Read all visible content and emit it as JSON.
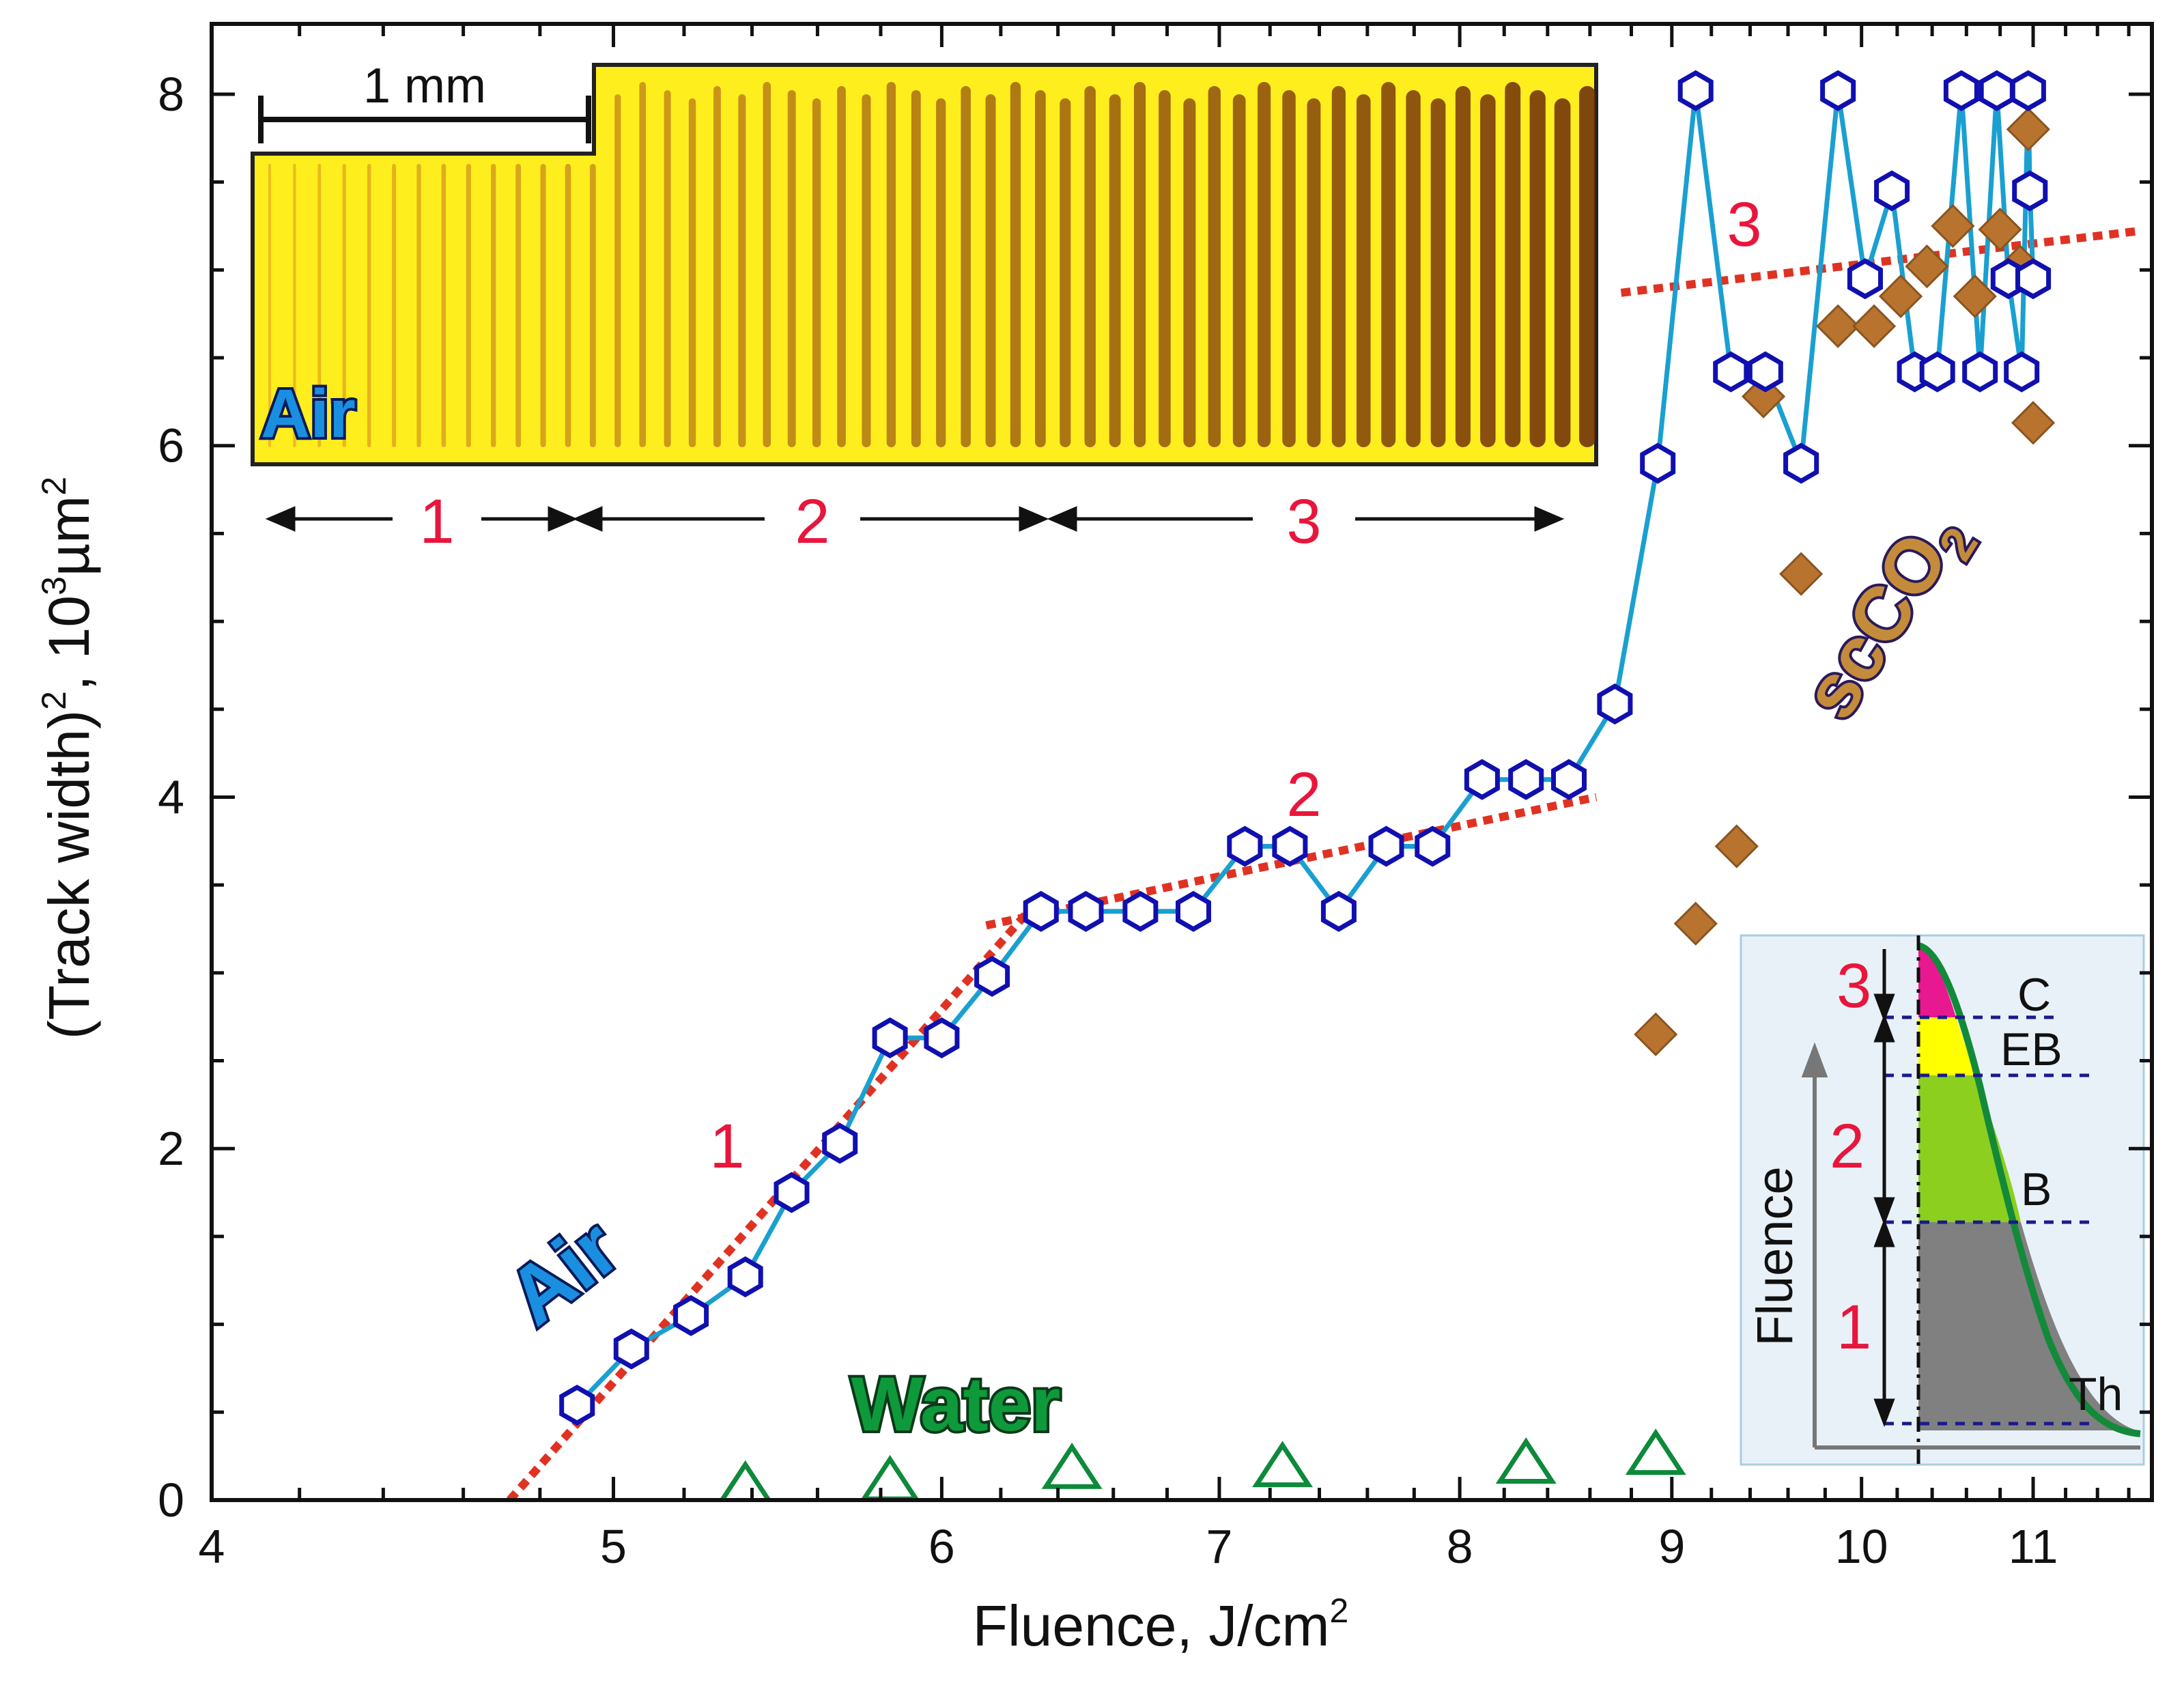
{
  "chart_data": {
    "type": "scatter",
    "xscale": "log",
    "xlabel": "Fluence, J/cm",
    "xlabel_sup": "2",
    "ylabel_parts": [
      "(Track width)",
      "2",
      ", 10",
      "3",
      "µm",
      "2"
    ],
    "xlim": [
      4,
      11.75
    ],
    "ylim": [
      0,
      8.4
    ],
    "xticks": [
      4,
      5,
      6,
      7,
      8,
      9,
      10,
      11
    ],
    "xtick_labels": [
      "4",
      "5",
      "6",
      "7",
      "8",
      "9",
      "10",
      "11"
    ],
    "yticks": [
      0,
      2,
      4,
      6,
      8
    ],
    "ytick_labels": [
      "0",
      "2",
      "4",
      "6",
      "8"
    ],
    "series": [
      {
        "name": "Air",
        "marker": "open-hexagon",
        "color": "#1010b0",
        "line_color": "#1aa0d0",
        "points": [
          [
            4.9,
            0.54
          ],
          [
            5.05,
            0.86
          ],
          [
            5.22,
            1.05
          ],
          [
            5.38,
            1.27
          ],
          [
            5.52,
            1.75
          ],
          [
            5.67,
            2.03
          ],
          [
            5.83,
            2.63
          ],
          [
            6.0,
            2.63
          ],
          [
            6.17,
            2.98
          ],
          [
            6.34,
            3.35
          ],
          [
            6.5,
            3.35
          ],
          [
            6.7,
            3.35
          ],
          [
            6.9,
            3.35
          ],
          [
            7.1,
            3.72
          ],
          [
            7.28,
            3.72
          ],
          [
            7.48,
            3.35
          ],
          [
            7.68,
            3.72
          ],
          [
            7.88,
            3.72
          ],
          [
            8.1,
            4.1
          ],
          [
            8.3,
            4.1
          ],
          [
            8.5,
            4.1
          ],
          [
            8.72,
            4.53
          ],
          [
            8.93,
            5.9
          ],
          [
            9.12,
            8.02
          ],
          [
            9.3,
            6.42
          ],
          [
            9.48,
            6.42
          ],
          [
            9.67,
            5.9
          ],
          [
            9.87,
            8.02
          ],
          [
            10.02,
            6.95
          ],
          [
            10.17,
            7.45
          ],
          [
            10.3,
            6.42
          ],
          [
            10.43,
            6.42
          ],
          [
            10.57,
            8.02
          ],
          [
            10.68,
            6.42
          ],
          [
            10.78,
            8.02
          ],
          [
            10.85,
            6.95
          ],
          [
            10.93,
            6.42
          ],
          [
            10.97,
            8.02
          ],
          [
            10.98,
            7.45
          ],
          [
            11.0,
            6.95
          ]
        ]
      },
      {
        "name": "Water",
        "marker": "open-triangle",
        "color": "#0d8a3a",
        "points": [
          [
            5.38,
            0.07
          ],
          [
            5.83,
            0.1
          ],
          [
            6.45,
            0.17
          ],
          [
            7.25,
            0.18
          ],
          [
            8.3,
            0.2
          ],
          [
            8.92,
            0.25
          ]
        ]
      },
      {
        "name": "scCO2",
        "marker": "diamond",
        "color": "#b8742e",
        "points": [
          [
            8.92,
            2.65
          ],
          [
            9.12,
            3.28
          ],
          [
            9.33,
            3.72
          ],
          [
            9.47,
            6.28
          ],
          [
            9.67,
            5.27
          ],
          [
            9.87,
            6.68
          ],
          [
            10.07,
            6.68
          ],
          [
            10.22,
            6.85
          ],
          [
            10.37,
            7.02
          ],
          [
            10.52,
            7.25
          ],
          [
            10.65,
            6.85
          ],
          [
            10.8,
            7.23
          ],
          [
            10.92,
            7.02
          ],
          [
            10.97,
            7.8
          ],
          [
            11.0,
            6.13
          ]
        ]
      }
    ],
    "trend_lines": [
      {
        "label": "1",
        "from": [
          4.72,
          0.0
        ],
        "to": [
          6.35,
          3.45
        ]
      },
      {
        "label": "2",
        "from": [
          6.15,
          3.27
        ],
        "to": [
          8.63,
          4.0
        ]
      },
      {
        "label": "3",
        "from": [
          8.75,
          6.87
        ],
        "to": [
          11.65,
          7.22
        ]
      }
    ],
    "annotations": {
      "air_label": "Air",
      "water_label": "Water",
      "scco2_main": "scCO",
      "scco2_sub": "2",
      "regime_1": "1",
      "regime_2": "2",
      "regime_3": "3"
    },
    "inset_photo": {
      "scale_bar": "1 mm",
      "label": "Air",
      "track_count": 54,
      "ranges": [
        "1",
        "2",
        "3"
      ]
    },
    "inset_diagram": {
      "axis_label": "Fluence",
      "levels": [
        "C",
        "EB",
        "B",
        "Th"
      ],
      "regimes": [
        "3",
        "2",
        "1"
      ]
    }
  }
}
